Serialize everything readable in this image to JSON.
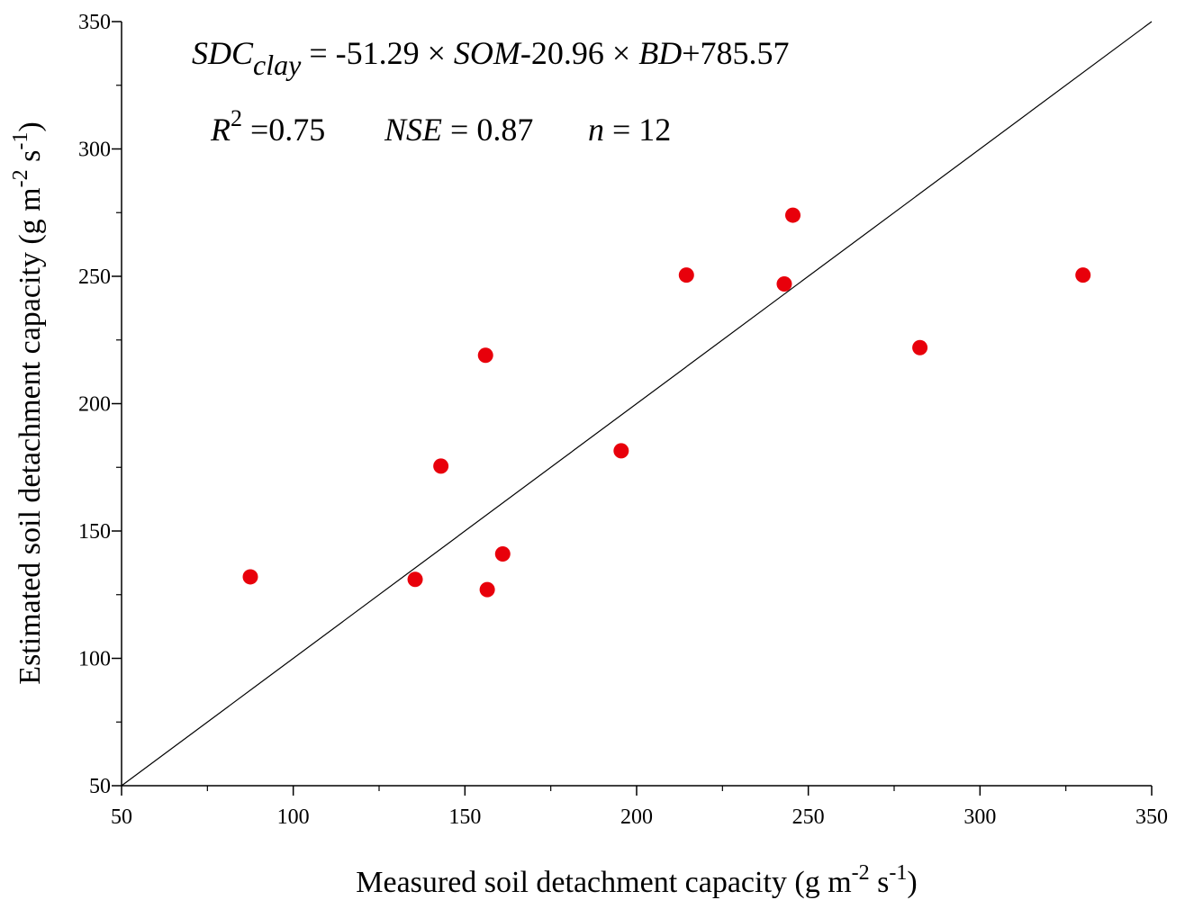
{
  "chart_data": {
    "type": "scatter",
    "title": "",
    "xlabel": {
      "main": "Measured soil detachment capacity (g m",
      "sup1": "-2",
      "mid": " s",
      "sup2": "-1",
      "end": ")"
    },
    "ylabel": {
      "main": "Estimated soil detachment capacity (g m",
      "sup1": "-2",
      "mid": " s",
      "sup2": "-1",
      "end": ")"
    },
    "xlim": [
      50,
      350
    ],
    "ylim": [
      50,
      350
    ],
    "major_ticks": [
      50,
      100,
      150,
      200,
      250,
      300,
      350
    ],
    "minor_step": 25,
    "grid": false,
    "reference_line": {
      "from": [
        50,
        50
      ],
      "to": [
        350,
        350
      ],
      "color": "#000000"
    },
    "marker_color": "#e8000b",
    "points": [
      {
        "x": 87.5,
        "y": 132
      },
      {
        "x": 135.5,
        "y": 131
      },
      {
        "x": 143,
        "y": 175.5
      },
      {
        "x": 156,
        "y": 219
      },
      {
        "x": 156.5,
        "y": 127
      },
      {
        "x": 161,
        "y": 141
      },
      {
        "x": 195.5,
        "y": 181.5
      },
      {
        "x": 214.5,
        "y": 250.5
      },
      {
        "x": 243,
        "y": 247
      },
      {
        "x": 245.5,
        "y": 274
      },
      {
        "x": 282.5,
        "y": 222
      },
      {
        "x": 330,
        "y": 250.5
      }
    ],
    "annotations": {
      "equation": {
        "lhs": "SDC",
        "lhs_sub": "clay",
        "eq": " = -51.29 × ",
        "var1": "SOM",
        "mid": "-20.96 × ",
        "var2": "BD",
        "tail": "+785.57"
      },
      "stats": {
        "r_sym": "R",
        "r_sup": "2",
        "r_val": " =0.75",
        "nse_sym": "NSE",
        "nse_val": " = 0.87",
        "n_sym": "n",
        "n_val": " = 12"
      }
    }
  }
}
